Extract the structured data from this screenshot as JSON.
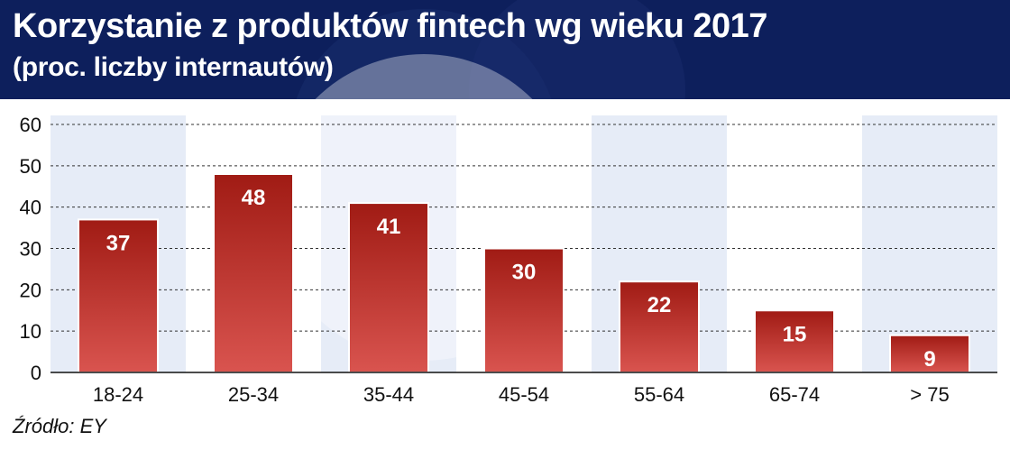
{
  "header": {
    "title": "Korzystanie z produktów fintech wg wieku 2017",
    "subtitle": "(proc. liczby internautów)"
  },
  "source": "Źródło: EY",
  "chart_data": {
    "type": "bar",
    "title": "Korzystanie z produktów fintech wg wieku 2017",
    "subtitle": "(proc. liczby internautów)",
    "categories": [
      "18-24",
      "25-34",
      "35-44",
      "45-54",
      "55-64",
      "65-74",
      "> 75"
    ],
    "values": [
      37,
      48,
      41,
      30,
      22,
      15,
      9
    ],
    "ylim": [
      0,
      60
    ],
    "yticks": [
      0,
      10,
      20,
      30,
      40,
      50,
      60
    ],
    "grid": true,
    "colors": {
      "bar_top": "#a01b14",
      "bar_bottom": "#d9544f",
      "header_bg": "#0d1f5c",
      "band": "#e6ecf7",
      "grid": "#333333"
    }
  }
}
